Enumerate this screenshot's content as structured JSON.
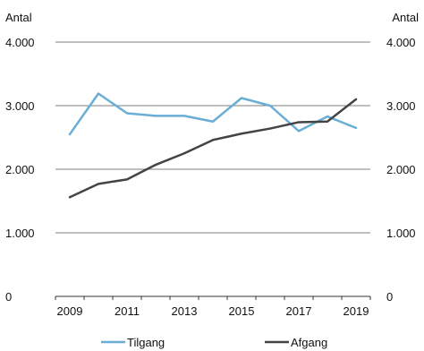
{
  "chart_data": {
    "type": "line",
    "y_label_left": "Antal",
    "y_label_right": "Antal",
    "x": [
      2009,
      2010,
      2011,
      2012,
      2013,
      2014,
      2015,
      2016,
      2017,
      2018,
      2019
    ],
    "x_tick_labels": [
      "2009",
      "2011",
      "2013",
      "2015",
      "2017",
      "2019"
    ],
    "x_tick_values": [
      2009,
      2011,
      2013,
      2015,
      2017,
      2019
    ],
    "y_tick_values": [
      0,
      1000,
      2000,
      3000,
      4000
    ],
    "y_tick_labels": [
      "0",
      "1.000",
      "2.000",
      "3.000",
      "4.000"
    ],
    "ylim": [
      0,
      4000
    ],
    "grid": "horizontal",
    "legend_placement": "bottom",
    "series": [
      {
        "name": "Tilgang",
        "color": "#6aaed6",
        "values": [
          2550,
          3190,
          2880,
          2840,
          2840,
          2750,
          3120,
          3000,
          2600,
          2830,
          2650
        ]
      },
      {
        "name": "Afgang",
        "color": "#444444",
        "values": [
          1560,
          1770,
          1840,
          2070,
          2250,
          2460,
          2560,
          2640,
          2740,
          2750,
          3100
        ]
      }
    ]
  }
}
